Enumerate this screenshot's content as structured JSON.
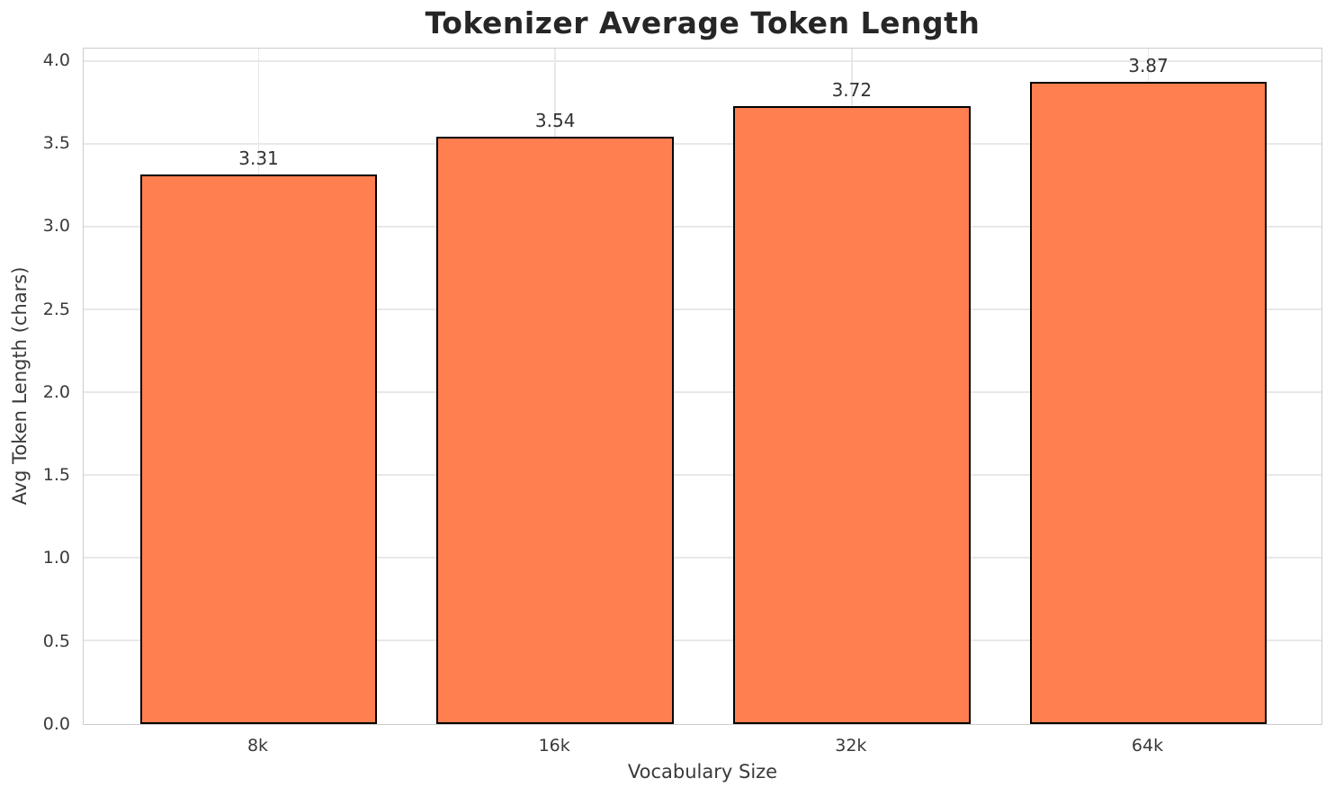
{
  "chart_data": {
    "type": "bar",
    "title": "Tokenizer Average Token Length",
    "xlabel": "Vocabulary Size",
    "ylabel": "Avg Token Length (chars)",
    "categories": [
      "8k",
      "16k",
      "32k",
      "64k"
    ],
    "values": [
      3.31,
      3.54,
      3.72,
      3.87
    ],
    "value_labels": [
      "3.31",
      "3.54",
      "3.72",
      "3.87"
    ],
    "y_ticks": [
      0.0,
      0.5,
      1.0,
      1.5,
      2.0,
      2.5,
      3.0,
      3.5,
      4.0
    ],
    "y_tick_labels": [
      "0.0",
      "0.5",
      "1.0",
      "1.5",
      "2.0",
      "2.5",
      "3.0",
      "3.5",
      "4.0"
    ],
    "ylim": [
      0,
      4.08
    ],
    "grid": true,
    "legend": null,
    "colors": {
      "bar_fill": "#FF7F50",
      "bar_edge": "#000000",
      "gridline": "#e8e8e8",
      "spine": "#cccccc",
      "title_text": "#262626",
      "tick_text": "#3a3a3a",
      "value_text": "#333333",
      "background": "#ffffff"
    }
  }
}
